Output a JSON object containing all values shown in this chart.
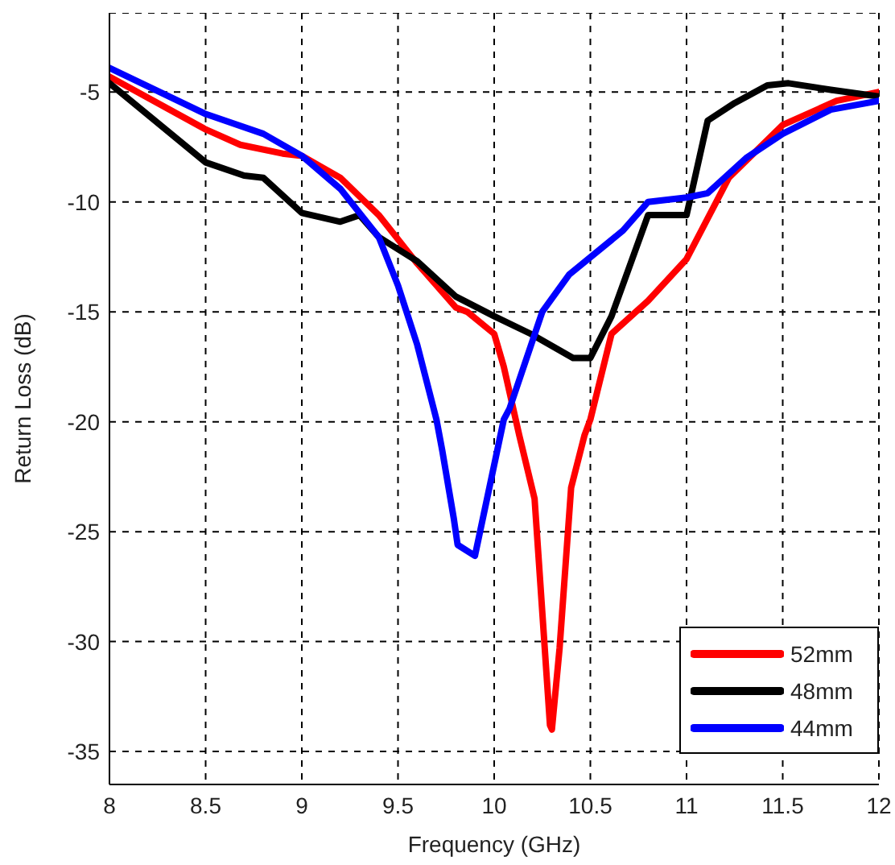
{
  "chart_data": {
    "type": "line",
    "xlabel": "Frequency (GHz)",
    "ylabel": "Return Loss (dB)",
    "xlim": [
      8,
      12
    ],
    "xticks": [
      8,
      8.5,
      9,
      9.5,
      10,
      10.5,
      11,
      11.5,
      12
    ],
    "ylim": [
      -36.5,
      -1.4
    ],
    "yticks": [
      -35,
      -30,
      -25,
      -20,
      -15,
      -10,
      -5
    ],
    "grid": true,
    "legend": "bottom right",
    "marker": "none",
    "line_style": "solid",
    "series": [
      {
        "name": "52mm",
        "color": "#ff0000",
        "x": [
          8,
          8.5,
          8.68,
          8.9,
          9,
          9.2,
          9.4,
          9.6,
          9.8,
          9.86,
          10,
          10.05,
          10.13,
          10.21,
          10.29,
          10.3,
          10.34,
          10.4,
          10.47,
          10.5,
          10.61,
          10.8,
          11,
          11.22,
          11.5,
          11.78,
          12
        ],
        "values": [
          -4.3,
          -6.7,
          -7.4,
          -7.8,
          -7.9,
          -8.9,
          -10.6,
          -12.8,
          -14.8,
          -15,
          -16,
          -17.5,
          -20.6,
          -23.5,
          -33.8,
          -34,
          -30.3,
          -23,
          -20.6,
          -19.9,
          -16,
          -14.5,
          -12.6,
          -8.9,
          -6.5,
          -5.4,
          -5
        ]
      },
      {
        "name": "48mm",
        "color": "#000000",
        "x": [
          8,
          8.5,
          8.7,
          8.8,
          9,
          9.2,
          9.3,
          9.4,
          9.6,
          9.8,
          10,
          10.19,
          10.41,
          10.5,
          10.61,
          10.8,
          11,
          11.11,
          11.25,
          11.42,
          11.53,
          11.75,
          12
        ],
        "values": [
          -4.6,
          -8.2,
          -8.8,
          -8.9,
          -10.5,
          -10.9,
          -10.6,
          -11.6,
          -12.7,
          -14.3,
          -15.2,
          -16,
          -17.1,
          -17.1,
          -15.2,
          -10.6,
          -10.6,
          -6.3,
          -5.5,
          -4.7,
          -4.6,
          -4.9,
          -5.2
        ]
      },
      {
        "name": "44mm",
        "color": "#0000ff",
        "x": [
          8,
          8.5,
          8.8,
          9,
          9.2,
          9.4,
          9.5,
          9.6,
          9.7,
          9.73,
          9.79,
          9.81,
          9.9,
          10.05,
          10.08,
          10.25,
          10.39,
          10.67,
          10.8,
          11,
          11.11,
          11.31,
          11.5,
          11.75,
          12
        ],
        "values": [
          -3.9,
          -6,
          -6.9,
          -7.9,
          -9.4,
          -11.6,
          -13.8,
          -16.5,
          -19.9,
          -21.3,
          -24.4,
          -25.6,
          -26.1,
          -19.9,
          -19.4,
          -15,
          -13.3,
          -11.3,
          -10,
          -9.8,
          -9.6,
          -8,
          -6.9,
          -5.8,
          -5.4
        ]
      }
    ]
  }
}
